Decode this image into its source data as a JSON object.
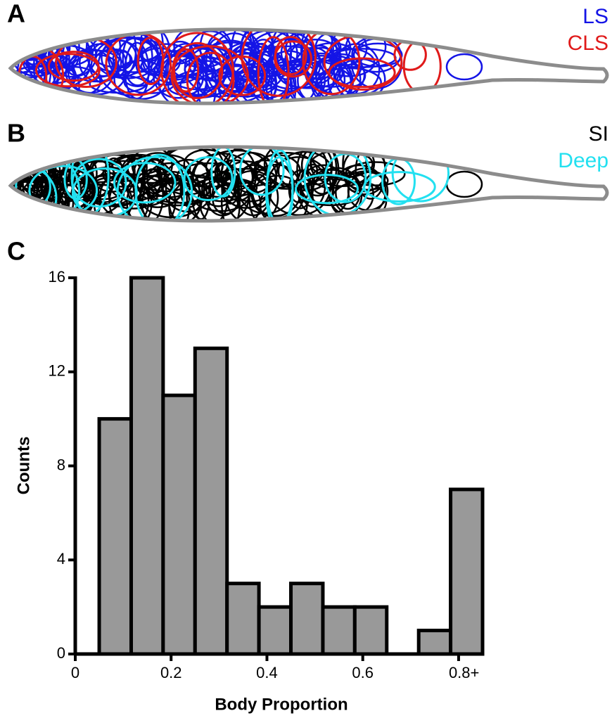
{
  "figure": {
    "panels": [
      {
        "label": "A",
        "legend": [
          {
            "name": "LS",
            "color": "#1414e6"
          },
          {
            "name": "CLS",
            "color": "#e01a1a"
          }
        ]
      },
      {
        "label": "B",
        "legend": [
          {
            "name": "SI",
            "color": "#000000"
          },
          {
            "name": "Deep",
            "color": "#22e0f0"
          }
        ]
      }
    ]
  },
  "chart_data": {
    "type": "histogram",
    "label": "C",
    "x_label": "Body Proportion",
    "y_label": "Counts",
    "bins": [
      0.05,
      0.1167,
      0.1833,
      0.25,
      0.3167,
      0.3833,
      0.45,
      0.5167,
      0.5833,
      0.65,
      0.7167,
      0.7833,
      0.85
    ],
    "values": [
      10,
      16,
      11,
      13,
      3,
      2,
      3,
      2,
      2,
      0,
      1,
      7
    ],
    "color": "#999999",
    "xlim": [
      0,
      0.85
    ],
    "xticks": [
      0,
      0.2,
      0.4,
      0.6,
      {
        "value": 0.8,
        "label": "0.8+"
      }
    ],
    "ylim": [
      0,
      16
    ],
    "yticks": [
      0,
      4,
      8,
      12,
      16
    ]
  }
}
